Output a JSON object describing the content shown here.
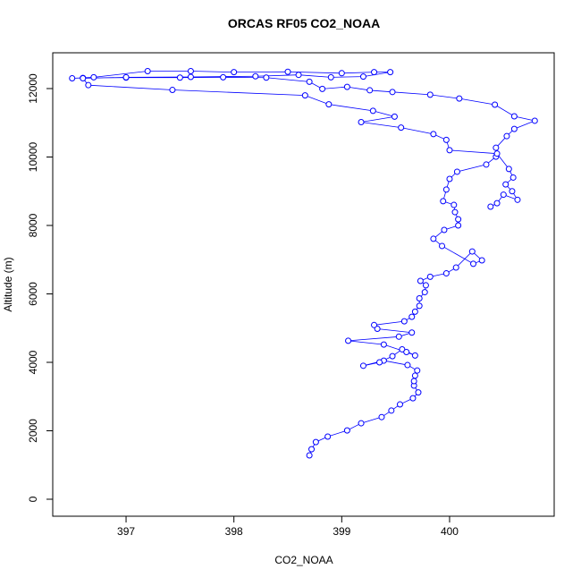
{
  "chart_data": {
    "type": "line",
    "title": "ORCAS RF05 CO2_NOAA",
    "x_label": "CO2_NOAA",
    "y_label": "Altitude (m)",
    "xlim": [
      396.32,
      400.97
    ],
    "ylim": [
      -497,
      13046
    ],
    "xticks": [
      397,
      398,
      399,
      400
    ],
    "yticks": [
      0,
      2000,
      4000,
      6000,
      8000,
      10000,
      12000
    ],
    "series": [
      {
        "color": "#0000ff",
        "x": [
          398.7,
          398.72,
          398.76,
          398.87,
          399.05,
          399.18,
          399.37,
          399.46,
          399.54,
          399.66,
          399.71,
          399.67,
          399.67,
          399.68,
          399.7,
          399.61,
          399.39,
          399.2,
          399.35,
          399.47,
          399.56,
          399.68,
          399.6,
          399.39,
          399.06,
          399.53,
          399.65,
          399.33,
          399.3,
          399.58,
          399.65,
          399.68,
          399.72,
          399.72,
          399.77,
          399.78,
          399.73,
          399.82,
          399.97,
          400.06,
          400.21,
          400.3,
          400.22,
          399.93,
          399.85,
          399.95,
          400.08,
          400.08,
          400.05,
          400.04,
          399.94,
          399.97,
          400.0,
          400.07,
          400.34,
          400.43,
          400.43,
          400.53,
          400.6,
          400.79,
          400.6,
          400.42,
          400.09,
          399.82,
          399.47,
          399.26,
          399.05,
          398.82,
          398.7,
          398.3,
          397.9,
          397.5,
          397.0,
          396.6,
          396.5,
          396.7,
          397.2,
          397.6,
          398.0,
          398.5,
          399.0,
          399.3,
          399.45,
          399.2,
          398.9,
          398.6,
          398.2,
          397.6,
          397.0,
          396.6,
          396.65,
          397.43,
          398.66,
          398.88,
          399.29,
          399.49,
          399.18,
          399.55,
          399.85,
          399.97,
          400.0,
          400.44,
          400.55,
          400.59,
          400.52,
          400.58,
          400.63,
          400.5,
          400.44,
          400.38
        ],
        "values": [
          1280,
          1460,
          1670,
          1830,
          2010,
          2220,
          2400,
          2590,
          2770,
          2950,
          3120,
          3320,
          3450,
          3610,
          3760,
          3920,
          4050,
          3900,
          4000,
          4180,
          4380,
          4200,
          4300,
          4520,
          4630,
          4750,
          4870,
          4980,
          5090,
          5200,
          5330,
          5480,
          5650,
          5870,
          6050,
          6250,
          6380,
          6500,
          6600,
          6770,
          7240,
          6980,
          6880,
          7400,
          7610,
          7870,
          8000,
          8180,
          8390,
          8600,
          8710,
          9050,
          9360,
          9570,
          9780,
          10010,
          10270,
          10610,
          10820,
          11060,
          11190,
          11530,
          11710,
          11820,
          11900,
          11950,
          12050,
          11990,
          12200,
          12320,
          12330,
          12320,
          12320,
          12310,
          12300,
          12330,
          12510,
          12510,
          12480,
          12490,
          12450,
          12480,
          12480,
          12350,
          12330,
          12400,
          12360,
          12340,
          12330,
          12300,
          12100,
          11960,
          11800,
          11540,
          11350,
          11180,
          11020,
          10860,
          10670,
          10500,
          10200,
          10100,
          9650,
          9400,
          9200,
          9000,
          8750,
          8900,
          8650,
          8550
        ]
      }
    ]
  }
}
